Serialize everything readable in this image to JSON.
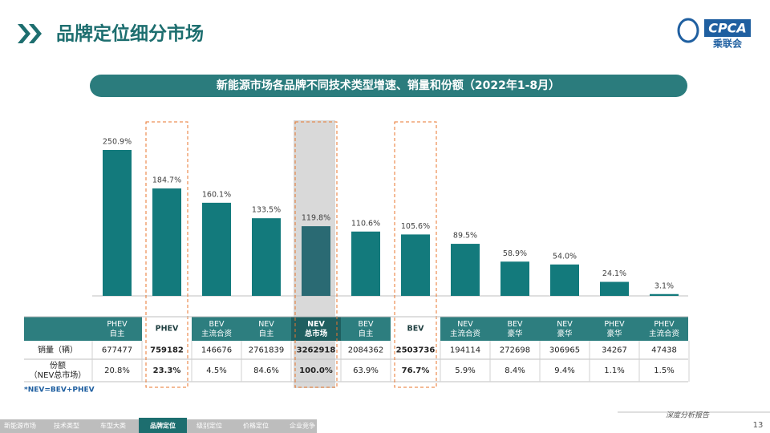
{
  "header": {
    "title": "品牌定位细分市场",
    "logo": "CPCA",
    "logo_sub": "乘联会"
  },
  "chart_data": {
    "type": "bar",
    "title": "新能源市场各品牌不同技术类型增速、销量和份额（2022年1-8月）",
    "categories": [
      "PHEV\n自主",
      "PHEV",
      "BEV\n主流合资",
      "NEV\n自主",
      "NEV\n总市场",
      "BEV\n自主",
      "BEV",
      "NEV\n主流合资",
      "BEV\n豪华",
      "NEV\n豪华",
      "PHEV\n豪华",
      "PHEV\n主流合资"
    ],
    "values": [
      250.9,
      184.7,
      160.1,
      133.5,
      119.8,
      110.6,
      105.6,
      89.5,
      58.9,
      54.0,
      24.1,
      3.1
    ],
    "value_labels": [
      "250.9%",
      "184.7%",
      "160.1%",
      "133.5%",
      "119.8%",
      "110.6%",
      "105.6%",
      "89.5%",
      "58.9%",
      "54.0%",
      "24.1%",
      "3.1%"
    ],
    "color": "#137a7c"
  },
  "table": {
    "rows": [
      {
        "label": "销量（辆）",
        "cells": [
          677477,
          759182,
          146676,
          2761839,
          3262918,
          2084362,
          2503736,
          194114,
          272698,
          306965,
          34267,
          47438
        ]
      },
      {
        "label": "份额\n（NEV总市场）",
        "cells": [
          "20.8%",
          "23.3%",
          "4.5%",
          "84.6%",
          "100.0%",
          "63.9%",
          "76.7%",
          "5.9%",
          "8.4%",
          "9.4%",
          "1.1%",
          "1.5%"
        ]
      }
    ]
  },
  "footnote": "*NEV=BEV+PHEV",
  "footer": {
    "tabs": [
      "新能源市场",
      "技术类型",
      "车型大类",
      "品牌定位",
      "级别定位",
      "价格定位",
      "企业竞争"
    ],
    "report": "深度分析报告",
    "page": "13"
  }
}
